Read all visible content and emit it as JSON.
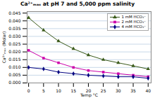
{
  "chart_data": {
    "type": "line",
    "title": "Ca²⁺ₘₐₓ at pH 7 and 5,000 ppm salinity",
    "x_label": "Temp °C",
    "y_label": "Ca²⁺ₘₐₓ (Molar)",
    "x": [
      0,
      5,
      10,
      15,
      20,
      25,
      30,
      35,
      40
    ],
    "series": [
      {
        "name": "1 mM HCO₃⁻",
        "color": "#3a5a1a",
        "marker": "triangle",
        "values": [
          0.042,
          0.034,
          0.027,
          0.022,
          0.018,
          0.015,
          0.013,
          0.011,
          0.009
        ]
      },
      {
        "name": "2 mM HCO₃⁻",
        "color": "#cc00aa",
        "marker": "square",
        "values": [
          0.021,
          0.016,
          0.013,
          0.01,
          0.008,
          0.007,
          0.006,
          0.005,
          0.004
        ]
      },
      {
        "name": "4 mM HCO₃⁻",
        "color": "#000080",
        "marker": "diamond",
        "values": [
          0.01,
          0.009,
          0.007,
          0.006,
          0.005,
          0.0045,
          0.004,
          0.004,
          0.003
        ]
      }
    ],
    "xlim": [
      -0.5,
      41
    ],
    "xticks": [
      0,
      5,
      10,
      15,
      20,
      25,
      30,
      35,
      40
    ],
    "ylim": [
      0.0,
      0.046
    ],
    "yticks": [
      {
        "value": 0.0,
        "label": "0.000"
      },
      {
        "value": 0.005,
        "label": "0.005"
      },
      {
        "value": 0.01,
        "label": "0.010"
      },
      {
        "value": 0.015,
        "label": "0.015"
      },
      {
        "value": 0.02,
        "label": "0.020"
      },
      {
        "value": 0.025,
        "label": "0.025"
      },
      {
        "value": 0.03,
        "label": "0.030"
      },
      {
        "value": 0.035,
        "label": "0.035"
      },
      {
        "value": 0.04,
        "label": "0.040"
      },
      {
        "value": 0.045,
        "label": "0.045"
      }
    ],
    "grid": "y",
    "legend": "upper right"
  }
}
